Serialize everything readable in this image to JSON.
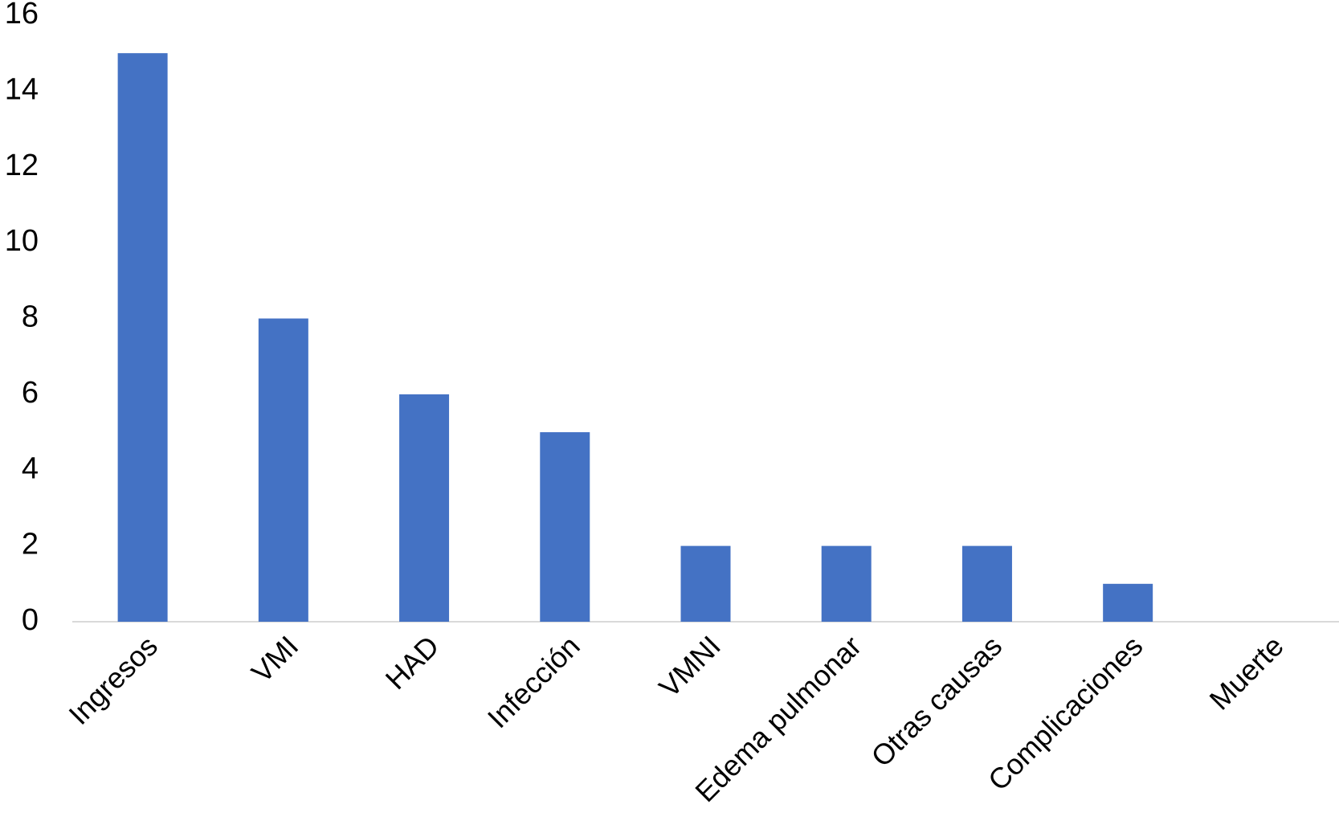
{
  "chart_data": {
    "type": "bar",
    "categories": [
      "Ingresos",
      "VMI",
      "HAD",
      "Infección",
      "VMNI",
      "Edema pulmonar",
      "Otras causas",
      "Complicaciones",
      "Muerte"
    ],
    "values": [
      15,
      8,
      6,
      5,
      2,
      2,
      2,
      1,
      0
    ],
    "color": "#4472c4",
    "ylim": [
      0,
      16
    ],
    "yticks": [
      0,
      2,
      4,
      6,
      8,
      10,
      12,
      14,
      16
    ],
    "grid": false
  }
}
